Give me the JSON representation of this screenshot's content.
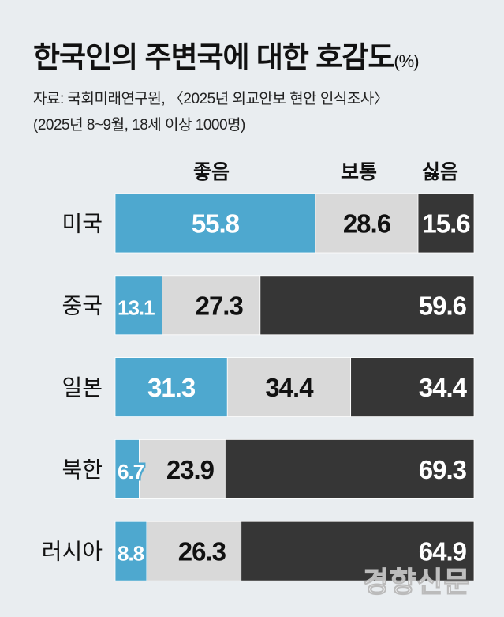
{
  "chart_data": {
    "type": "bar",
    "orientation": "horizontal",
    "stacked": true,
    "title": "한국인의 주변국에 대한 호감도",
    "unit": "(%)",
    "source": "자료: 국회미래연구원, 〈2025년 외교안보 현안 인식조사〉",
    "note": "(2025년 8~9월, 18세 이상 1000명)",
    "categories": [
      "미국",
      "중국",
      "일본",
      "북한",
      "러시아"
    ],
    "series": [
      {
        "name": "좋음",
        "color": "#4ea8cf",
        "label_color": "#ffffff",
        "values": [
          55.8,
          13.1,
          31.3,
          6.7,
          8.8
        ]
      },
      {
        "name": "보통",
        "color": "#d9d9d9",
        "label_color": "#111111",
        "values": [
          28.6,
          27.3,
          34.4,
          23.9,
          26.3
        ]
      },
      {
        "name": "싫음",
        "color": "#363636",
        "label_color": "#ffffff",
        "values": [
          15.6,
          59.6,
          34.4,
          69.3,
          64.9
        ]
      }
    ],
    "xlim": [
      0,
      100
    ],
    "grid": false,
    "legend": "top"
  },
  "watermark": "경향신문"
}
